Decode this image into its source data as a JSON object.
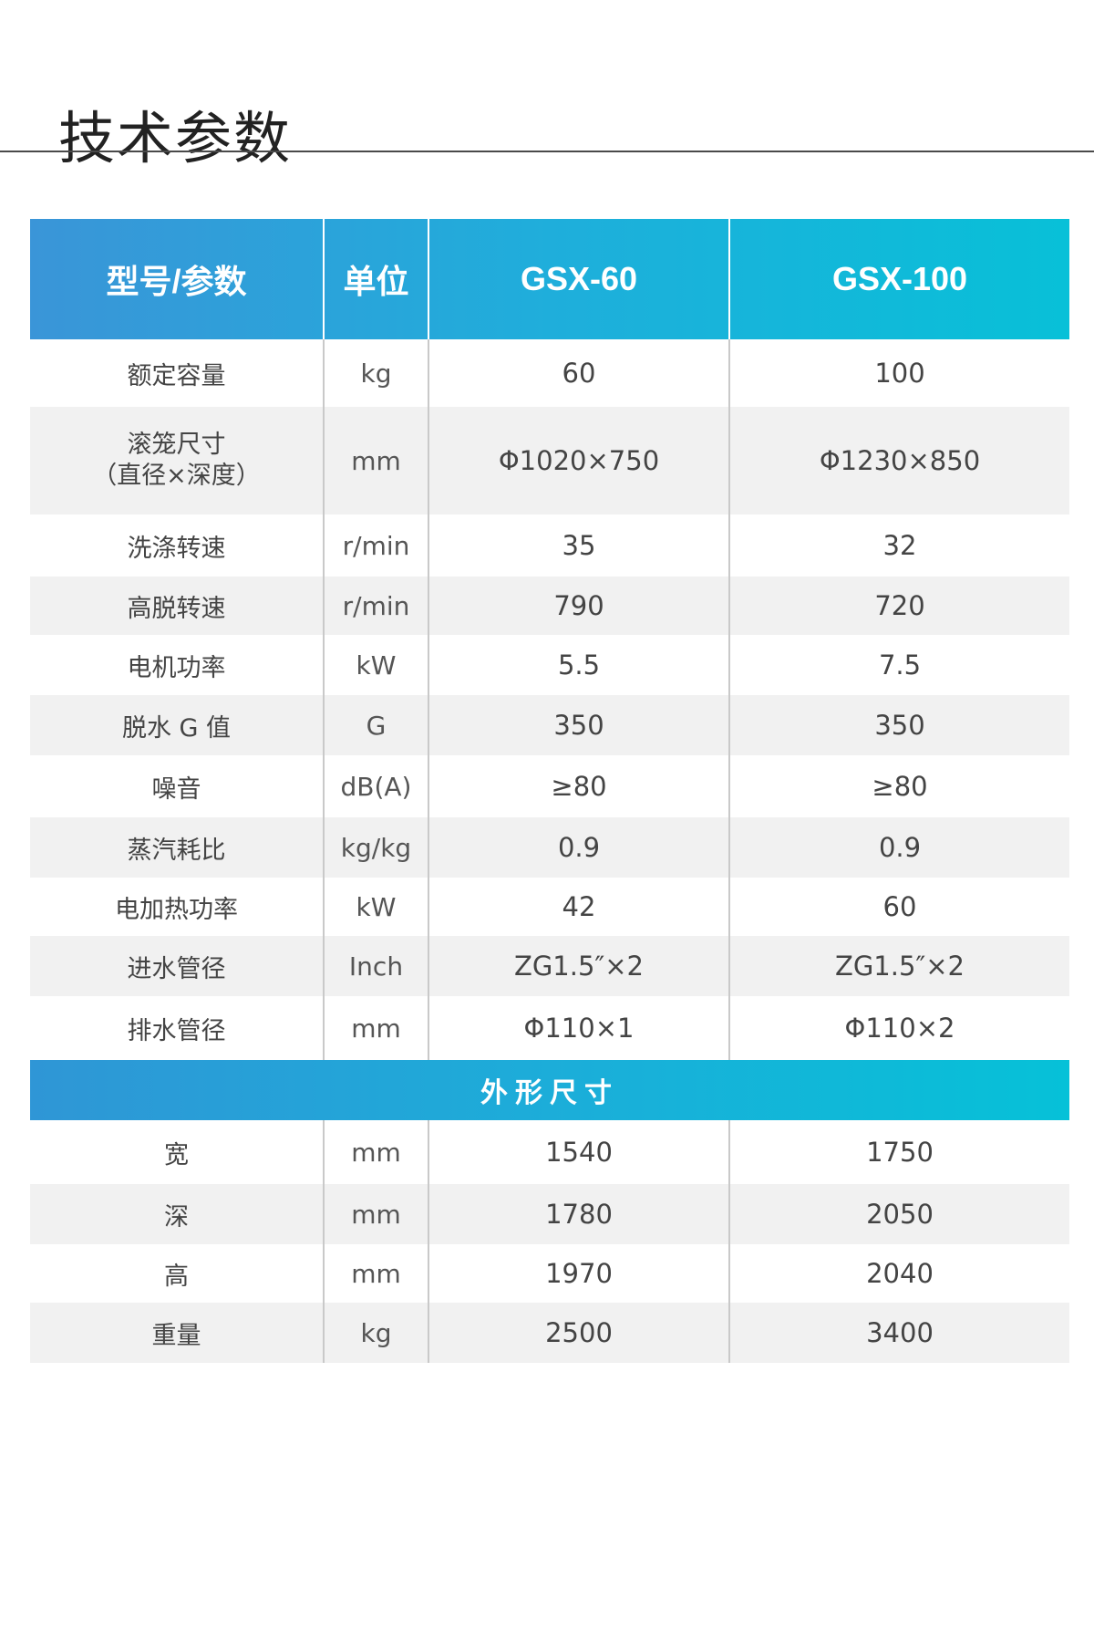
{
  "page": {
    "title": "技术参数"
  },
  "table": {
    "headers": {
      "param": "型号/参数",
      "unit": "单位",
      "model_1": "GSX-60",
      "model_2": "GSX-100"
    },
    "rows": [
      {
        "param": "额定容量",
        "unit": "kg",
        "model_1": "60",
        "model_2": "100"
      },
      {
        "param": "滚笼尺寸",
        "param_sub": "（直径×深度）",
        "unit": "mm",
        "model_1": "Φ1020×750",
        "model_2": "Φ1230×850"
      },
      {
        "param": "洗涤转速",
        "unit": "r/min",
        "model_1": "35",
        "model_2": "32"
      },
      {
        "param": "高脱转速",
        "unit": "r/min",
        "model_1": "790",
        "model_2": "720"
      },
      {
        "param": "电机功率",
        "unit": "kW",
        "model_1": "5.5",
        "model_2": "7.5"
      },
      {
        "param": "脱水 G 值",
        "unit": "G",
        "model_1": "350",
        "model_2": "350"
      },
      {
        "param": "噪音",
        "unit": "dB(A)",
        "model_1": "≥80",
        "model_2": "≥80"
      },
      {
        "param": "蒸汽耗比",
        "unit": "kg/kg",
        "model_1": "0.9",
        "model_2": "0.9"
      },
      {
        "param": "电加热功率",
        "unit": "kW",
        "model_1": "42",
        "model_2": "60"
      },
      {
        "param": "进水管径",
        "unit": "Inch",
        "model_1": "ZG1.5″×2",
        "model_2": "ZG1.5″×2"
      },
      {
        "param": "排水管径",
        "unit": "mm",
        "model_1": "Φ110×1",
        "model_2": "Φ110×2"
      }
    ],
    "section_title": "外形尺寸",
    "dimension_rows": [
      {
        "param": "宽",
        "unit": "mm",
        "model_1": "1540",
        "model_2": "1750"
      },
      {
        "param": "深",
        "unit": "mm",
        "model_1": "1780",
        "model_2": "2050"
      },
      {
        "param": "高",
        "unit": "mm",
        "model_1": "1970",
        "model_2": "2040"
      },
      {
        "param": "重量",
        "unit": "kg",
        "model_1": "2500",
        "model_2": "3400"
      }
    ]
  }
}
